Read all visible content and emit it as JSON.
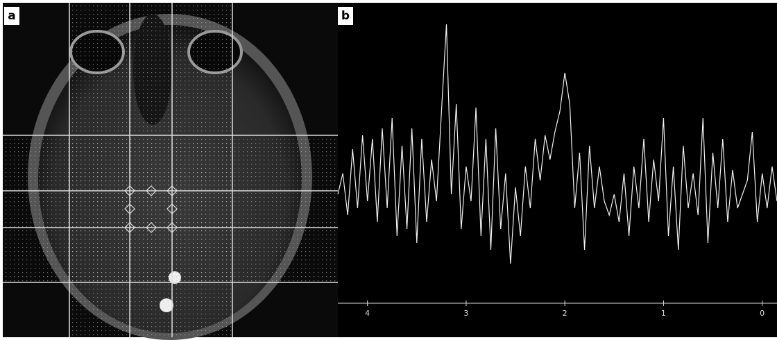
{
  "panels": {
    "a": "a",
    "b": "b"
  },
  "chart_data": {
    "type": "line",
    "x": [
      4.3,
      4.25,
      4.2,
      4.15,
      4.1,
      4.05,
      4.0,
      3.95,
      3.9,
      3.85,
      3.8,
      3.75,
      3.7,
      3.65,
      3.6,
      3.55,
      3.5,
      3.45,
      3.4,
      3.35,
      3.3,
      3.25,
      3.2,
      3.15,
      3.1,
      3.05,
      3.0,
      2.95,
      2.9,
      2.85,
      2.8,
      2.75,
      2.7,
      2.65,
      2.6,
      2.55,
      2.5,
      2.45,
      2.4,
      2.35,
      2.3,
      2.25,
      2.2,
      2.15,
      2.1,
      2.05,
      2.0,
      1.95,
      1.9,
      1.85,
      1.8,
      1.75,
      1.7,
      1.65,
      1.6,
      1.55,
      1.5,
      1.45,
      1.4,
      1.35,
      1.3,
      1.25,
      1.2,
      1.15,
      1.1,
      1.05,
      1.0,
      0.95,
      0.9,
      0.85,
      0.8,
      0.75,
      0.7,
      0.65,
      0.6,
      0.55,
      0.5,
      0.45,
      0.4,
      0.35,
      0.3,
      0.25,
      0.2,
      0.15,
      0.1,
      0.05,
      0.0,
      -0.05,
      -0.1,
      -0.15
    ],
    "series": [
      {
        "color": "#f2f2f2",
        "values": [
          120,
          150,
          90,
          185,
          100,
          205,
          110,
          200,
          80,
          215,
          100,
          230,
          60,
          190,
          70,
          215,
          50,
          200,
          80,
          170,
          110,
          240,
          365,
          120,
          250,
          70,
          160,
          110,
          245,
          60,
          200,
          40,
          215,
          70,
          150,
          20,
          130,
          60,
          160,
          100,
          200,
          140,
          205,
          170,
          210,
          240,
          295,
          250,
          100,
          180,
          40,
          190,
          100,
          160,
          110,
          90,
          120,
          80,
          150,
          60,
          160,
          100,
          200,
          80,
          170,
          110,
          230,
          60,
          160,
          40,
          190,
          100,
          150,
          90,
          230,
          50,
          180,
          100,
          200,
          80,
          155,
          100,
          120,
          140,
          210,
          80,
          150,
          100,
          160,
          110
        ]
      }
    ],
    "xlim": [
      4.3,
      -0.15
    ],
    "ylim": [
      0,
      380
    ],
    "xticks": [
      4,
      3,
      2,
      1,
      0
    ]
  }
}
